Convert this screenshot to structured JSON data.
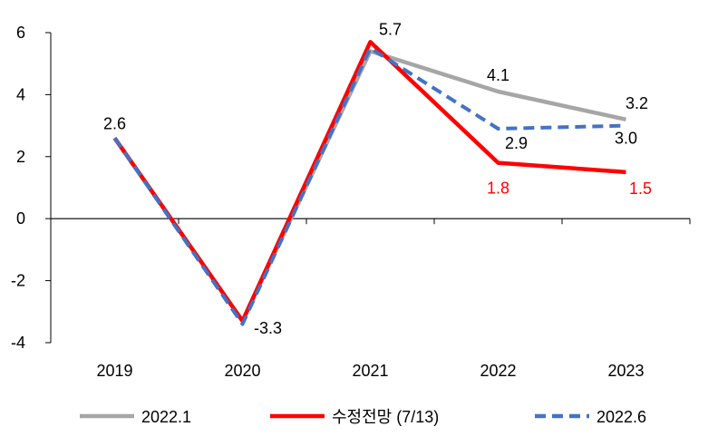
{
  "chart_data": {
    "type": "line",
    "categories": [
      "2019",
      "2020",
      "2021",
      "2022",
      "2023"
    ],
    "ylim": [
      -4,
      6
    ],
    "yticks": [
      -4,
      -2,
      0,
      2,
      4,
      6
    ],
    "ytick_labels": [
      "-4",
      "-2",
      "0",
      "2",
      "4",
      "6"
    ],
    "grid": false,
    "legend_position": "bottom",
    "series": [
      {
        "name": "2022.1",
        "values": [
          2.6,
          -3.3,
          5.4,
          4.1,
          3.2
        ],
        "color": "#a6a6a6",
        "style": "solid",
        "labels": [
          null,
          null,
          null,
          "4.1",
          "3.2"
        ],
        "label_color": "#000000"
      },
      {
        "name": "수정전망 (7/13)",
        "values": [
          2.6,
          -3.3,
          5.7,
          1.8,
          1.5
        ],
        "color": "#ff0000",
        "style": "solid",
        "labels": [
          "2.6",
          "-3.3",
          "5.7",
          "1.8",
          "1.5"
        ],
        "label_color_by_point": [
          "#000000",
          "#000000",
          "#000000",
          "#ff0000",
          "#ff0000"
        ]
      },
      {
        "name": "2022.6",
        "values": [
          2.6,
          -3.4,
          5.5,
          2.9,
          3.0
        ],
        "color": "#4472c4",
        "style": "dashed",
        "labels": [
          null,
          null,
          null,
          "2.9",
          "3.0"
        ],
        "label_color": "#000000"
      }
    ]
  }
}
